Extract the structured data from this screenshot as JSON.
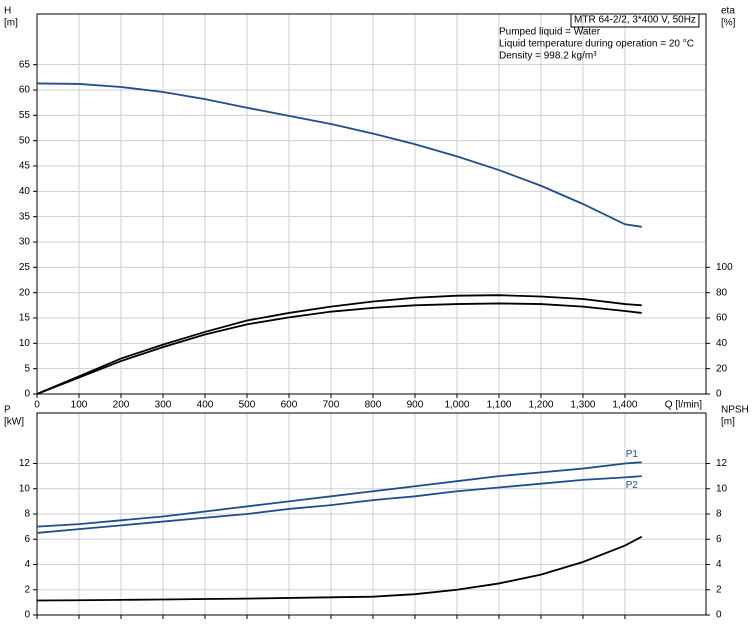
{
  "chart_data": [
    {
      "type": "line",
      "ylabel": [
        "H",
        "[m]"
      ],
      "y2label": [
        "eta",
        "[%]"
      ],
      "xlabel": "Q [l/min]",
      "annotations": [
        "MTR 64-2/2, 3*400 V, 50Hz",
        "Pumped liquid = Water",
        "Liquid temperature during operation = 20 °C",
        "Density = 998.2 kg/m³"
      ],
      "x": [
        0,
        100,
        200,
        300,
        400,
        500,
        600,
        700,
        800,
        900,
        1000,
        1100,
        1200,
        1300,
        1400,
        1440
      ],
      "xlim": [
        0,
        1593
      ],
      "xticks": [
        0,
        100,
        200,
        300,
        400,
        500,
        600,
        700,
        800,
        900,
        {
          "value": 1000,
          "label": "1,000"
        },
        {
          "value": 1100,
          "label": "1,100"
        },
        {
          "value": 1200,
          "label": "1,200"
        },
        {
          "value": 1300,
          "label": "1,300"
        },
        {
          "value": 1400,
          "label": "1,400"
        }
      ],
      "ylim": [
        0,
        75
      ],
      "yticks": [
        0,
        5,
        10,
        15,
        20,
        25,
        30,
        35,
        40,
        45,
        50,
        55,
        60,
        65
      ],
      "y2lim": [
        0,
        300
      ],
      "y2ticks": [
        0,
        20,
        40,
        60,
        80,
        100
      ],
      "grid": true,
      "series": [
        {
          "color": "#1f4e8c",
          "values": [
            61.3,
            61.2,
            60.6,
            59.6,
            58.2,
            56.5,
            54.9,
            53.3,
            51.4,
            49.3,
            46.9,
            44.2,
            41.1,
            37.5,
            33.5,
            33
          ]
        },
        {
          "color": "#000000",
          "axis": "y2",
          "values": [
            0,
            14,
            28,
            39,
            49,
            58,
            64,
            69,
            73,
            76,
            77.6,
            78,
            77,
            75,
            71,
            70
          ]
        },
        {
          "color": "#000000",
          "axis": "y2",
          "values": [
            0,
            13,
            26,
            37,
            47,
            55,
            60.5,
            65,
            68,
            70,
            71,
            71.5,
            71,
            69,
            65.5,
            64
          ]
        }
      ]
    },
    {
      "type": "line",
      "ylabel": [
        "P",
        "[kW]"
      ],
      "y2label": [
        "NPSH",
        "[m]"
      ],
      "x": [
        0,
        100,
        200,
        300,
        400,
        500,
        600,
        700,
        800,
        900,
        1000,
        1100,
        1200,
        1300,
        1400,
        1440
      ],
      "xlim": [
        0,
        1593
      ],
      "xticks": [
        0,
        100,
        200,
        300,
        400,
        500,
        600,
        700,
        800,
        900,
        1000,
        1100,
        1200,
        1300,
        1400
      ],
      "ylim": [
        0,
        16
      ],
      "yticks": [
        0,
        2,
        4,
        6,
        8,
        10,
        12
      ],
      "y2lim": [
        0,
        16
      ],
      "y2ticks": [
        0,
        2,
        4,
        6,
        8,
        10,
        12
      ],
      "grid": true,
      "series": [
        {
          "name": "P1",
          "color": "#1f4e8c",
          "values": [
            7.0,
            7.2,
            7.5,
            7.8,
            8.2,
            8.6,
            9.0,
            9.4,
            9.8,
            10.2,
            10.6,
            11.0,
            11.3,
            11.6,
            12.0,
            12.1
          ]
        },
        {
          "name": "P2",
          "color": "#1f4e8c",
          "values": [
            6.5,
            6.8,
            7.1,
            7.4,
            7.7,
            8.0,
            8.4,
            8.7,
            9.1,
            9.4,
            9.8,
            10.1,
            10.4,
            10.7,
            10.9,
            11.0
          ]
        },
        {
          "color": "#000000",
          "axis": "y2",
          "values": [
            1.15,
            1.17,
            1.2,
            1.23,
            1.27,
            1.3,
            1.35,
            1.4,
            1.45,
            1.65,
            2.0,
            2.5,
            3.2,
            4.2,
            5.5,
            6.2
          ]
        }
      ]
    }
  ]
}
